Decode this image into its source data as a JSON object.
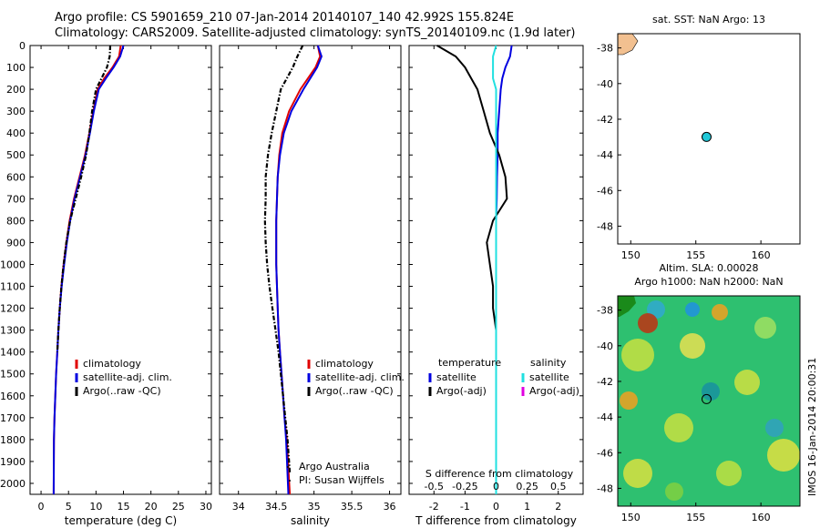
{
  "header": {
    "line1": "Argo profile: CS 5901659_210 07-Jan-2014 20140107_140 42.992S 155.824E",
    "line2": "Climatology: CARS2009. Satellite-adjusted climatology: synTS_20140109.nc (1.9d later)"
  },
  "colors": {
    "climatology": "#e00000",
    "satellite": "#0000e0",
    "argo": "#000000",
    "salinity_satellite": "#20e0e0",
    "salinity_argo_adj": "#e000e0",
    "land": "#f2c090"
  },
  "chart_data": [
    {
      "type": "line",
      "name": "temperature-profile",
      "xlabel": "temperature (deg C)",
      "xlim": [
        -2,
        31
      ],
      "ylim": [
        2050,
        0
      ],
      "xticks": [
        0,
        5,
        10,
        15,
        20,
        25,
        30
      ],
      "yticks": [
        0,
        100,
        200,
        300,
        400,
        500,
        600,
        700,
        800,
        900,
        1000,
        1100,
        1200,
        1300,
        1400,
        1500,
        1600,
        1700,
        1800,
        1900,
        2000
      ],
      "legend": [
        "climatology",
        "satellite-adj. clim.",
        "Argo(..raw -QC)"
      ],
      "series": [
        {
          "name": "climatology",
          "color": "climatology",
          "x": [
            14.5,
            14.2,
            13.0,
            11.5,
            10.3,
            9.5,
            8.8,
            8.0,
            7.0,
            6.0,
            5.2,
            4.6,
            4.1,
            3.7,
            3.4,
            3.15,
            2.95,
            2.75,
            2.6,
            2.45,
            2.35,
            2.3
          ],
          "y": [
            0,
            50,
            100,
            150,
            200,
            300,
            400,
            500,
            600,
            700,
            800,
            900,
            1000,
            1100,
            1200,
            1300,
            1400,
            1500,
            1600,
            1700,
            1800,
            2050
          ]
        },
        {
          "name": "satellite",
          "color": "satellite",
          "x": [
            15.0,
            14.4,
            13.2,
            11.8,
            10.5,
            9.6,
            8.9,
            8.1,
            7.1,
            6.1,
            5.3,
            4.7,
            4.2,
            3.75,
            3.4,
            3.15,
            2.95,
            2.75,
            2.6,
            2.45,
            2.35,
            2.3
          ],
          "y": [
            0,
            50,
            100,
            150,
            200,
            300,
            400,
            500,
            600,
            700,
            800,
            900,
            1000,
            1100,
            1200,
            1300,
            1400,
            1500,
            1600,
            1700,
            1800,
            2050
          ]
        },
        {
          "name": "argo",
          "color": "argo",
          "dashed": true,
          "x": [
            12.6,
            12.5,
            12.0,
            11.0,
            10.0,
            9.3,
            8.8,
            8.2,
            7.3,
            6.3,
            5.3,
            4.6,
            4.1,
            3.7,
            3.4,
            3.15,
            2.95
          ],
          "y": [
            0,
            50,
            100,
            150,
            200,
            300,
            400,
            500,
            600,
            700,
            800,
            900,
            1000,
            1100,
            1200,
            1300,
            1400
          ]
        }
      ]
    },
    {
      "type": "line",
      "name": "salinity-profile",
      "xlabel": "salinity",
      "xlim": [
        33.75,
        36.15
      ],
      "ylim": [
        2050,
        0
      ],
      "xticks": [
        34,
        34.5,
        35,
        35.5,
        36
      ],
      "legend": [
        "climatology",
        "satellite-adj. clim.",
        "Argo(..raw -QC)"
      ],
      "annotation": [
        "Argo Australia",
        "PI: Susan Wijffels"
      ],
      "series": [
        {
          "name": "climatology",
          "color": "climatology",
          "x": [
            35.05,
            35.08,
            35.02,
            34.92,
            34.82,
            34.67,
            34.58,
            34.54,
            34.52,
            34.51,
            34.5,
            34.5,
            34.5,
            34.51,
            34.52,
            34.53,
            34.55,
            34.57,
            34.59,
            34.61,
            34.64,
            34.68
          ],
          "y": [
            0,
            50,
            100,
            150,
            200,
            300,
            400,
            500,
            600,
            700,
            800,
            900,
            1000,
            1100,
            1200,
            1300,
            1400,
            1500,
            1600,
            1700,
            1800,
            2050
          ]
        },
        {
          "name": "satellite",
          "color": "satellite",
          "x": [
            35.05,
            35.1,
            35.04,
            34.95,
            34.86,
            34.7,
            34.6,
            34.55,
            34.52,
            34.51,
            34.5,
            34.5,
            34.5,
            34.51,
            34.52,
            34.53,
            34.55,
            34.57,
            34.59,
            34.61,
            34.63,
            34.66
          ],
          "y": [
            0,
            50,
            100,
            150,
            200,
            300,
            400,
            500,
            600,
            700,
            800,
            900,
            1000,
            1100,
            1200,
            1300,
            1400,
            1500,
            1600,
            1700,
            1800,
            2050
          ]
        },
        {
          "name": "argo",
          "color": "argo",
          "dashed": true,
          "x": [
            34.85,
            34.78,
            34.72,
            34.64,
            34.56,
            34.5,
            34.44,
            34.39,
            34.36,
            34.36,
            34.35,
            34.36,
            34.38,
            34.41,
            34.45,
            34.49,
            34.53,
            34.56,
            34.59,
            34.62,
            34.65,
            34.68
          ],
          "y": [
            0,
            50,
            100,
            150,
            200,
            300,
            400,
            500,
            600,
            700,
            800,
            900,
            1000,
            1100,
            1200,
            1300,
            1400,
            1500,
            1600,
            1700,
            1800,
            1950
          ]
        }
      ]
    },
    {
      "type": "line",
      "name": "difference-profile",
      "xlabel": "T difference from climatology",
      "xlabel_top": "S difference from climatology",
      "xlim": [
        -2.8,
        2.8
      ],
      "ylim": [
        2050,
        0
      ],
      "xticks": [
        -2,
        -1,
        0,
        1,
        2
      ],
      "xtick_labels_top": [
        "-0.5",
        "-0.25",
        "0",
        "0.25",
        "0.5"
      ],
      "legend": {
        "temperature_heading": "temperature",
        "salinity_heading": "salinity",
        "items": [
          "satellite",
          "Argo(-adj)",
          "satellite",
          "Argo(-adj)"
        ]
      },
      "series": [
        {
          "name": "temperature-satellite",
          "color": "satellite",
          "x": [
            0.5,
            0.45,
            0.3,
            0.2,
            0.15,
            0.1,
            0.05,
            0.05,
            0.03,
            0.02,
            0.0,
            0.0,
            0.0,
            0.0,
            0.0,
            0.0,
            0.0,
            0.0,
            0.0,
            0.0,
            0.0
          ],
          "y": [
            0,
            50,
            100,
            150,
            200,
            300,
            400,
            500,
            600,
            700,
            800,
            900,
            1000,
            1100,
            1200,
            1300,
            1400,
            1500,
            1600,
            1700,
            2000
          ]
        },
        {
          "name": "temperature-argo",
          "color": "argo",
          "x": [
            -1.9,
            -1.3,
            -1.0,
            -0.8,
            -0.6,
            -0.4,
            -0.2,
            0.1,
            0.3,
            0.35,
            -0.1,
            -0.3,
            -0.2,
            -0.1,
            -0.1,
            0.0,
            0.0,
            0.0,
            0.0,
            0.0,
            0.0
          ],
          "y": [
            0,
            50,
            100,
            150,
            200,
            300,
            400,
            500,
            600,
            700,
            800,
            900,
            1000,
            1100,
            1200,
            1300,
            1400,
            1500,
            1600,
            1700,
            1900
          ]
        },
        {
          "name": "salinity-satellite",
          "color": "salinity_satellite",
          "x": [
            0.0,
            -0.1,
            -0.1,
            -0.1,
            0.0,
            0.0,
            0.0,
            0.0,
            0.0,
            0.0,
            0.0,
            0.0,
            0.0,
            0.0,
            0.0,
            0.0,
            0.0,
            0.0,
            0.0,
            0.0,
            0.0
          ],
          "y": [
            0,
            50,
            100,
            150,
            200,
            300,
            400,
            500,
            600,
            700,
            800,
            900,
            1000,
            1100,
            1200,
            1300,
            1400,
            1500,
            1600,
            1700,
            2050
          ]
        }
      ]
    },
    {
      "type": "scatter",
      "name": "sst-map",
      "title": "sat. SST: NaN Argo: 13",
      "xlim": [
        149,
        163
      ],
      "ylim": [
        -49,
        -37.2
      ],
      "xticks": [
        150,
        155,
        160
      ],
      "yticks": [
        -38,
        -40,
        -42,
        -44,
        -46,
        -48
      ],
      "points": [
        {
          "x": 155.824,
          "y": -42.992
        }
      ]
    },
    {
      "type": "heatmap",
      "name": "sla-map",
      "title1": "Altim. SLA: 0.00028",
      "title2": "Argo h1000: NaN h2000: NaN",
      "xlim": [
        149,
        163
      ],
      "ylim": [
        -49,
        -37.2
      ],
      "xticks": [
        150,
        155,
        160
      ],
      "yticks": [
        -38,
        -40,
        -42,
        -44,
        -46,
        -48
      ],
      "points": [
        {
          "x": 155.824,
          "y": -42.992
        }
      ],
      "side_label": "IMOS 16-Jan-2014 20:00:31"
    }
  ]
}
